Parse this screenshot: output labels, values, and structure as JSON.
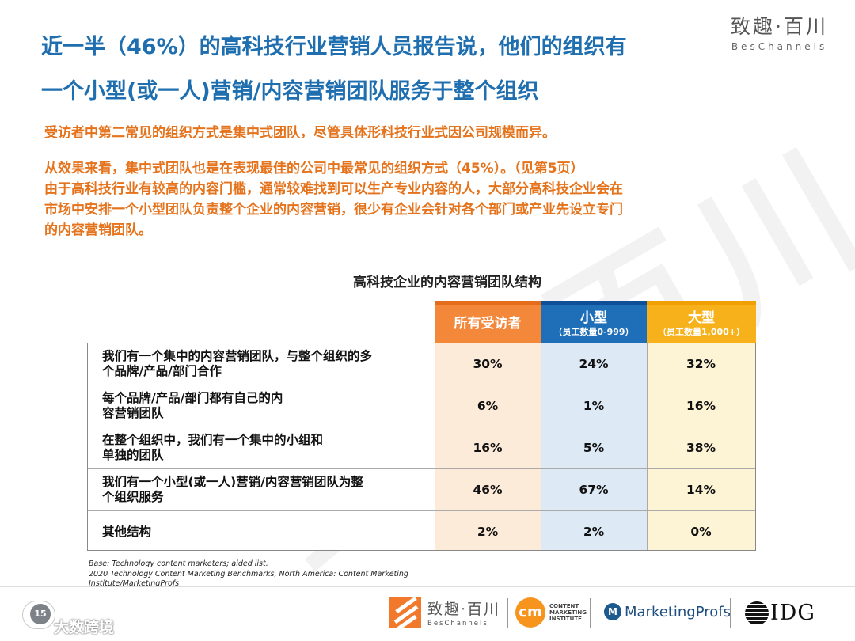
{
  "title": {
    "line1": "近一半（46%）的高科技行业营销人员报告说，他们的组织有",
    "line2": "一个小型(或一人)营销/内容营销团队服务于整个组织"
  },
  "brand_top": {
    "cn": "致趣·百川",
    "en": "BesChannels"
  },
  "watermark": "致趣百川",
  "paragraphs": {
    "p1": "受访者中第二常见的组织方式是集中式团队，尽管具体形科技行业式因公司规模而异。",
    "p2_lines": [
      "从效果来看，集中式团队也是在表现最佳的公司中最常见的组织方式（45%）。（见第5页）",
      "由于高科技行业有较高的内容门槛，通常较难找到可以生产专业内容的人，大部分高科技企业会在",
      "市场中安排一个小型团队负责整个企业的内容营销，很少有企业会针对各个部门或产业先设立专门",
      "的内容营销团队。"
    ]
  },
  "table": {
    "title": "高科技企业的内容营销团队结构",
    "headers": {
      "all": {
        "main": "所有受访者"
      },
      "small": {
        "main": "小型",
        "sub": "（员工数量0-999）"
      },
      "large": {
        "main": "大型",
        "sub": "（员工数量1,000+）"
      }
    },
    "rows": [
      {
        "label_lines": [
          "我们有一个集中的内容营销团队，与整个组织的多",
          "个品牌/产品/部门合作"
        ],
        "all": "30%",
        "small": "24%",
        "large": "32%"
      },
      {
        "label_lines": [
          "每个品牌/产品/部门都有自己的内",
          "容营销团队"
        ],
        "all": "6%",
        "small": "1%",
        "large": "16%"
      },
      {
        "label_lines": [
          "在整个组织中，我们有一个集中的小组和",
          "单独的团队"
        ],
        "all": "16%",
        "small": "5%",
        "large": "38%"
      },
      {
        "label_lines": [
          "我们有一个小型(或一人)营销/内容营销团队为整",
          "个组织服务"
        ],
        "all": "46%",
        "small": "67%",
        "large": "14%"
      },
      {
        "label_lines": [
          "其他结构"
        ],
        "all": "2%",
        "small": "2%",
        "large": "0%"
      }
    ]
  },
  "source_lines": [
    "Base: Technology content marketers; aided list.",
    "2020 Technology Content Marketing Benchmarks, North America: Content Marketing",
    "Institute/MarketingProfs"
  ],
  "footer": {
    "page_number": "15",
    "bottom_watermark": "大数跨境",
    "beschannels": {
      "cn": "致趣·百川",
      "en": "BesChannels"
    },
    "cmi": {
      "mark": "cm",
      "lines": [
        "CONTENT",
        "MARKETING",
        "INSTITUTE"
      ]
    },
    "marketingprofs": {
      "mark": "M",
      "name": "MarketingProfs"
    },
    "idg": {
      "name": "IDG"
    }
  },
  "colors": {
    "title_blue": "#1f6fb0",
    "text_orange": "#e5731c",
    "header_all": "#f4883a",
    "header_small": "#1f6fb8",
    "header_large": "#f7b21b",
    "col_all_bg": "#fdebd9",
    "col_small_bg": "#dde9f5",
    "col_large_bg": "#fdf3d5"
  }
}
